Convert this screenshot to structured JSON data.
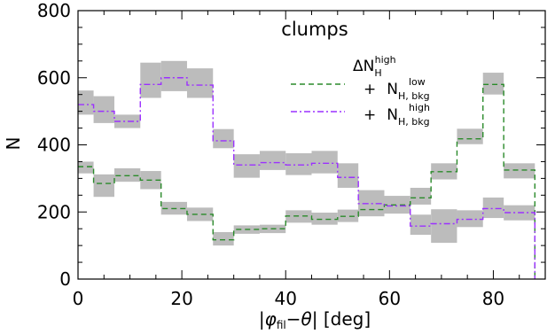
{
  "chart_data": {
    "type": "line",
    "title": "clumps",
    "xlabel": "|φ_fil−θ| [deg]",
    "ylabel": "N",
    "xlim": [
      0,
      90
    ],
    "ylim": [
      0,
      800
    ],
    "x_ticks": [
      0,
      20,
      40,
      60,
      80
    ],
    "y_ticks": [
      0,
      200,
      400,
      600,
      800
    ],
    "grid": false,
    "legend_position": "top-right",
    "bin_edges": [
      0,
      3,
      7,
      12,
      16,
      21,
      26,
      30,
      35,
      40,
      45,
      50,
      54,
      59,
      64,
      68,
      73,
      78,
      82,
      88
    ],
    "series": [
      {
        "name": "ΔN_H^high + N_H,bkg^low",
        "name_parts": {
          "delta": "ΔN",
          "main": "H",
          "sup": "high",
          "plus": "+",
          "second": "N",
          "sub2": "H, bkg",
          "sup2": "low"
        },
        "style": "dashed",
        "color": "#2a8a2a",
        "values": [
          335,
          285,
          308,
          295,
          210,
          193,
          117,
          148,
          150,
          188,
          178,
          187,
          207,
          221,
          242,
          320,
          418,
          580,
          325
        ],
        "error_low": [
          315,
          245,
          290,
          268,
          192,
          173,
          100,
          135,
          137,
          168,
          162,
          170,
          187,
          200,
          222,
          297,
          402,
          550,
          300
        ],
        "error_high": [
          350,
          312,
          330,
          322,
          230,
          213,
          140,
          160,
          162,
          205,
          198,
          207,
          228,
          242,
          272,
          345,
          448,
          615,
          345
        ]
      },
      {
        "name": "+ N_H,bkg^high",
        "name_parts": {
          "plus": "+",
          "second": "N",
          "sub2": "H, bkg",
          "sup2": "high"
        },
        "style": "dash-dot",
        "color": "#9b30ff",
        "values": [
          520,
          500,
          470,
          580,
          600,
          578,
          412,
          340,
          347,
          340,
          345,
          303,
          225,
          218,
          158,
          165,
          178,
          210,
          198
        ],
        "error_low": [
          490,
          465,
          450,
          540,
          560,
          540,
          390,
          302,
          325,
          310,
          315,
          272,
          197,
          195,
          132,
          108,
          155,
          182,
          175
        ],
        "error_high": [
          562,
          545,
          490,
          645,
          650,
          628,
          447,
          372,
          382,
          375,
          382,
          345,
          265,
          248,
          192,
          208,
          205,
          243,
          220
        ]
      }
    ]
  }
}
